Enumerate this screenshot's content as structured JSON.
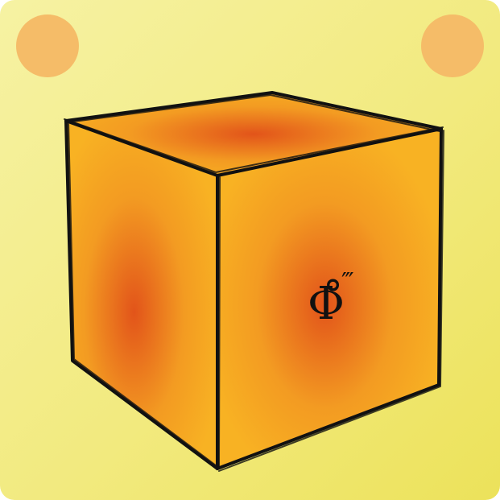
{
  "card": {
    "background_start": "#f6f2a3",
    "background_end": "#ece25a",
    "corner_dot_color": "#f5bc68"
  },
  "cube": {
    "face_color": "#f8b223",
    "face_center_color": "#e2541a",
    "edge_color": "#111111",
    "symbol": "Φ̊",
    "symbol_primes": "‴"
  }
}
